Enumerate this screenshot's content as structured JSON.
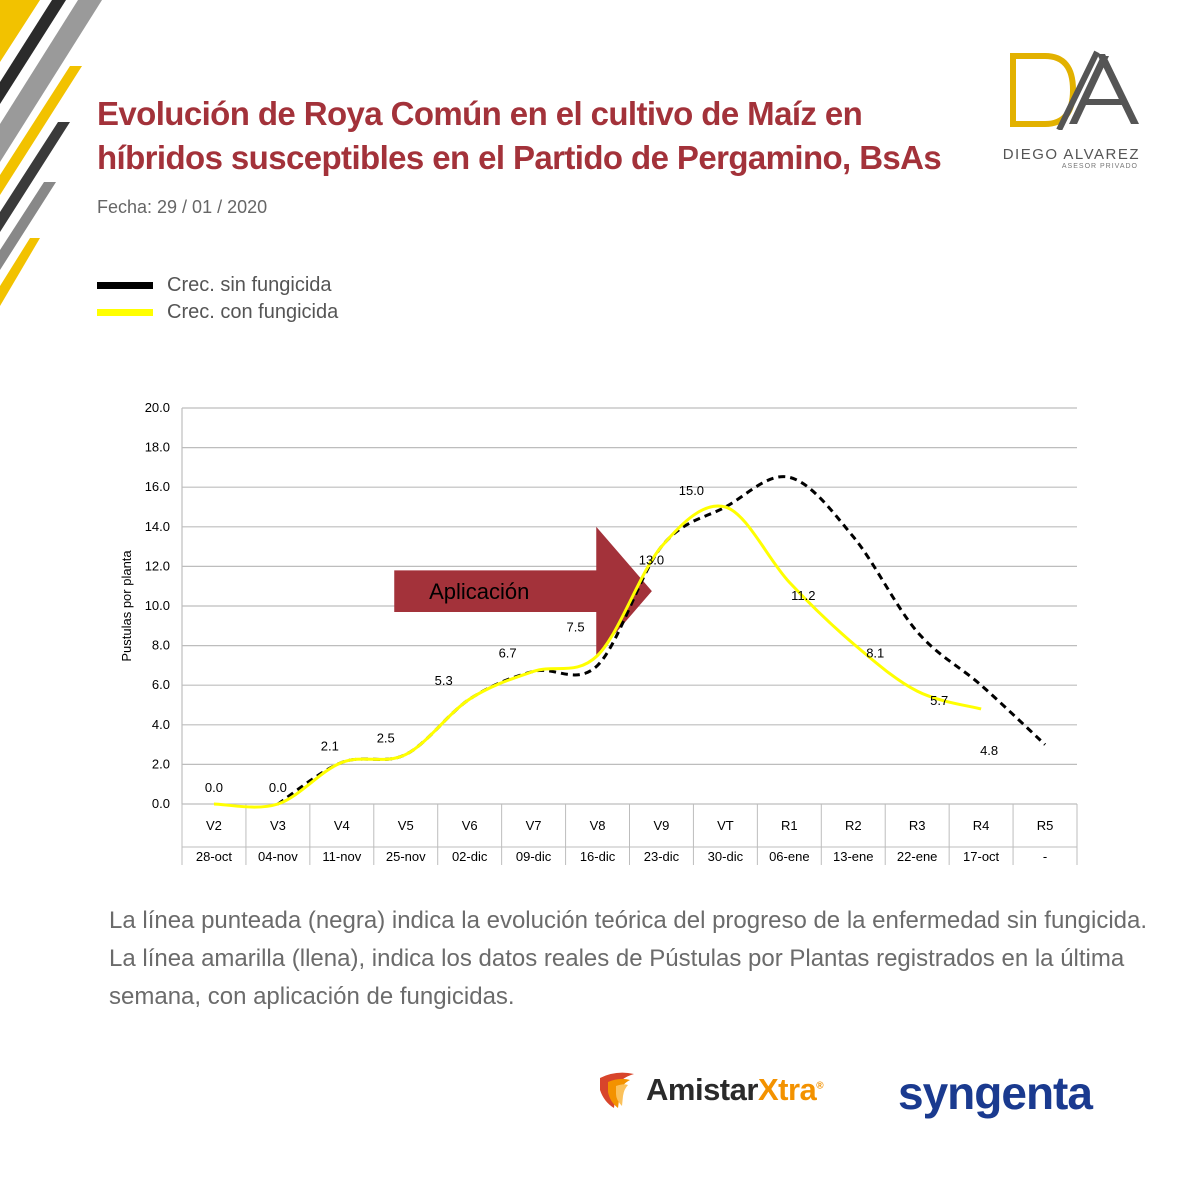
{
  "header": {
    "title_line1": "Evolución de Roya Común en el cultivo de Maíz en",
    "title_line2": "híbridos susceptibles en el Partido de Pergamino, BsAs",
    "date": "Fecha: 29 / 01 / 2020"
  },
  "logo": {
    "mark": "D/A",
    "name": "DIEGO ALVAREZ",
    "subtitle": "ASESOR PRIVADO"
  },
  "legend": [
    {
      "label": "Crec. sin fungicida",
      "color": "#000000"
    },
    {
      "label": "Crec. con fungicida",
      "color": "#ffff00"
    }
  ],
  "chart_data": {
    "type": "line",
    "ylabel": "Pustulas por planta",
    "ylim": [
      0,
      20
    ],
    "yticks": [
      "0.0",
      "2.0",
      "4.0",
      "6.0",
      "8.0",
      "10.0",
      "12.0",
      "14.0",
      "16.0",
      "18.0",
      "20.0"
    ],
    "categories": [
      "V2",
      "V3",
      "V4",
      "V5",
      "V6",
      "V7",
      "V8",
      "V9",
      "VT",
      "R1",
      "R2",
      "R3",
      "R4",
      "R5"
    ],
    "dates": [
      "28-oct",
      "04-nov",
      "11-nov",
      "25-nov",
      "02-dic",
      "09-dic",
      "16-dic",
      "23-dic",
      "30-dic",
      "06-ene",
      "13-ene",
      "22-ene",
      "17-oct",
      "-"
    ],
    "series": [
      {
        "name": "Crec. sin fungicida",
        "style": "dashed",
        "color": "#000000",
        "values": [
          null,
          0.0,
          2.1,
          2.5,
          5.3,
          6.7,
          7.0,
          13.0,
          15.0,
          16.5,
          13.5,
          8.7,
          6.0,
          3.0
        ]
      },
      {
        "name": "Crec. con fungicida",
        "style": "solid",
        "color": "#ffff00",
        "values": [
          0.0,
          0.0,
          2.1,
          2.5,
          5.3,
          6.7,
          7.5,
          13.0,
          15.0,
          11.2,
          8.1,
          5.7,
          4.8,
          null
        ]
      }
    ],
    "data_labels": [
      {
        "i": 0,
        "label": "0.0",
        "value": 0.0
      },
      {
        "i": 1,
        "label": "0.0",
        "value": 0.0
      },
      {
        "i": 2,
        "label": "2.1",
        "value": 2.1
      },
      {
        "i": 3,
        "label": "2.5",
        "value": 2.5
      },
      {
        "i": 4,
        "label": "5.3",
        "value": 5.3
      },
      {
        "i": 5,
        "label": "6.7",
        "value": 6.7
      },
      {
        "i": 6,
        "label": "7.5",
        "value": 7.5
      },
      {
        "i": 7,
        "label": "13.0",
        "value": 13.0
      },
      {
        "i": 8,
        "label": "15.0",
        "value": 15.0
      },
      {
        "i": 9,
        "label": "11.2",
        "value": 11.2
      },
      {
        "i": 10,
        "label": "8.1",
        "value": 8.1
      },
      {
        "i": 11,
        "label": "5.7",
        "value": 5.7
      },
      {
        "i": 12,
        "label": "4.8",
        "value": 4.8
      }
    ],
    "annotation": {
      "text": "Aplicación",
      "color": "#a3323a"
    }
  },
  "caption": "La línea punteada (negra) indica la evolución teórica del progreso de la enfermedad sin fungicida. La línea amarilla (llena), indica los datos reales de Pústulas por Plantas registrados en la última semana, con aplicación de fungicidas.",
  "brands": {
    "amistar_a": "Amistar",
    "amistar_b": "Xtra",
    "amistar_reg": "®",
    "syngenta": "syngenta"
  }
}
